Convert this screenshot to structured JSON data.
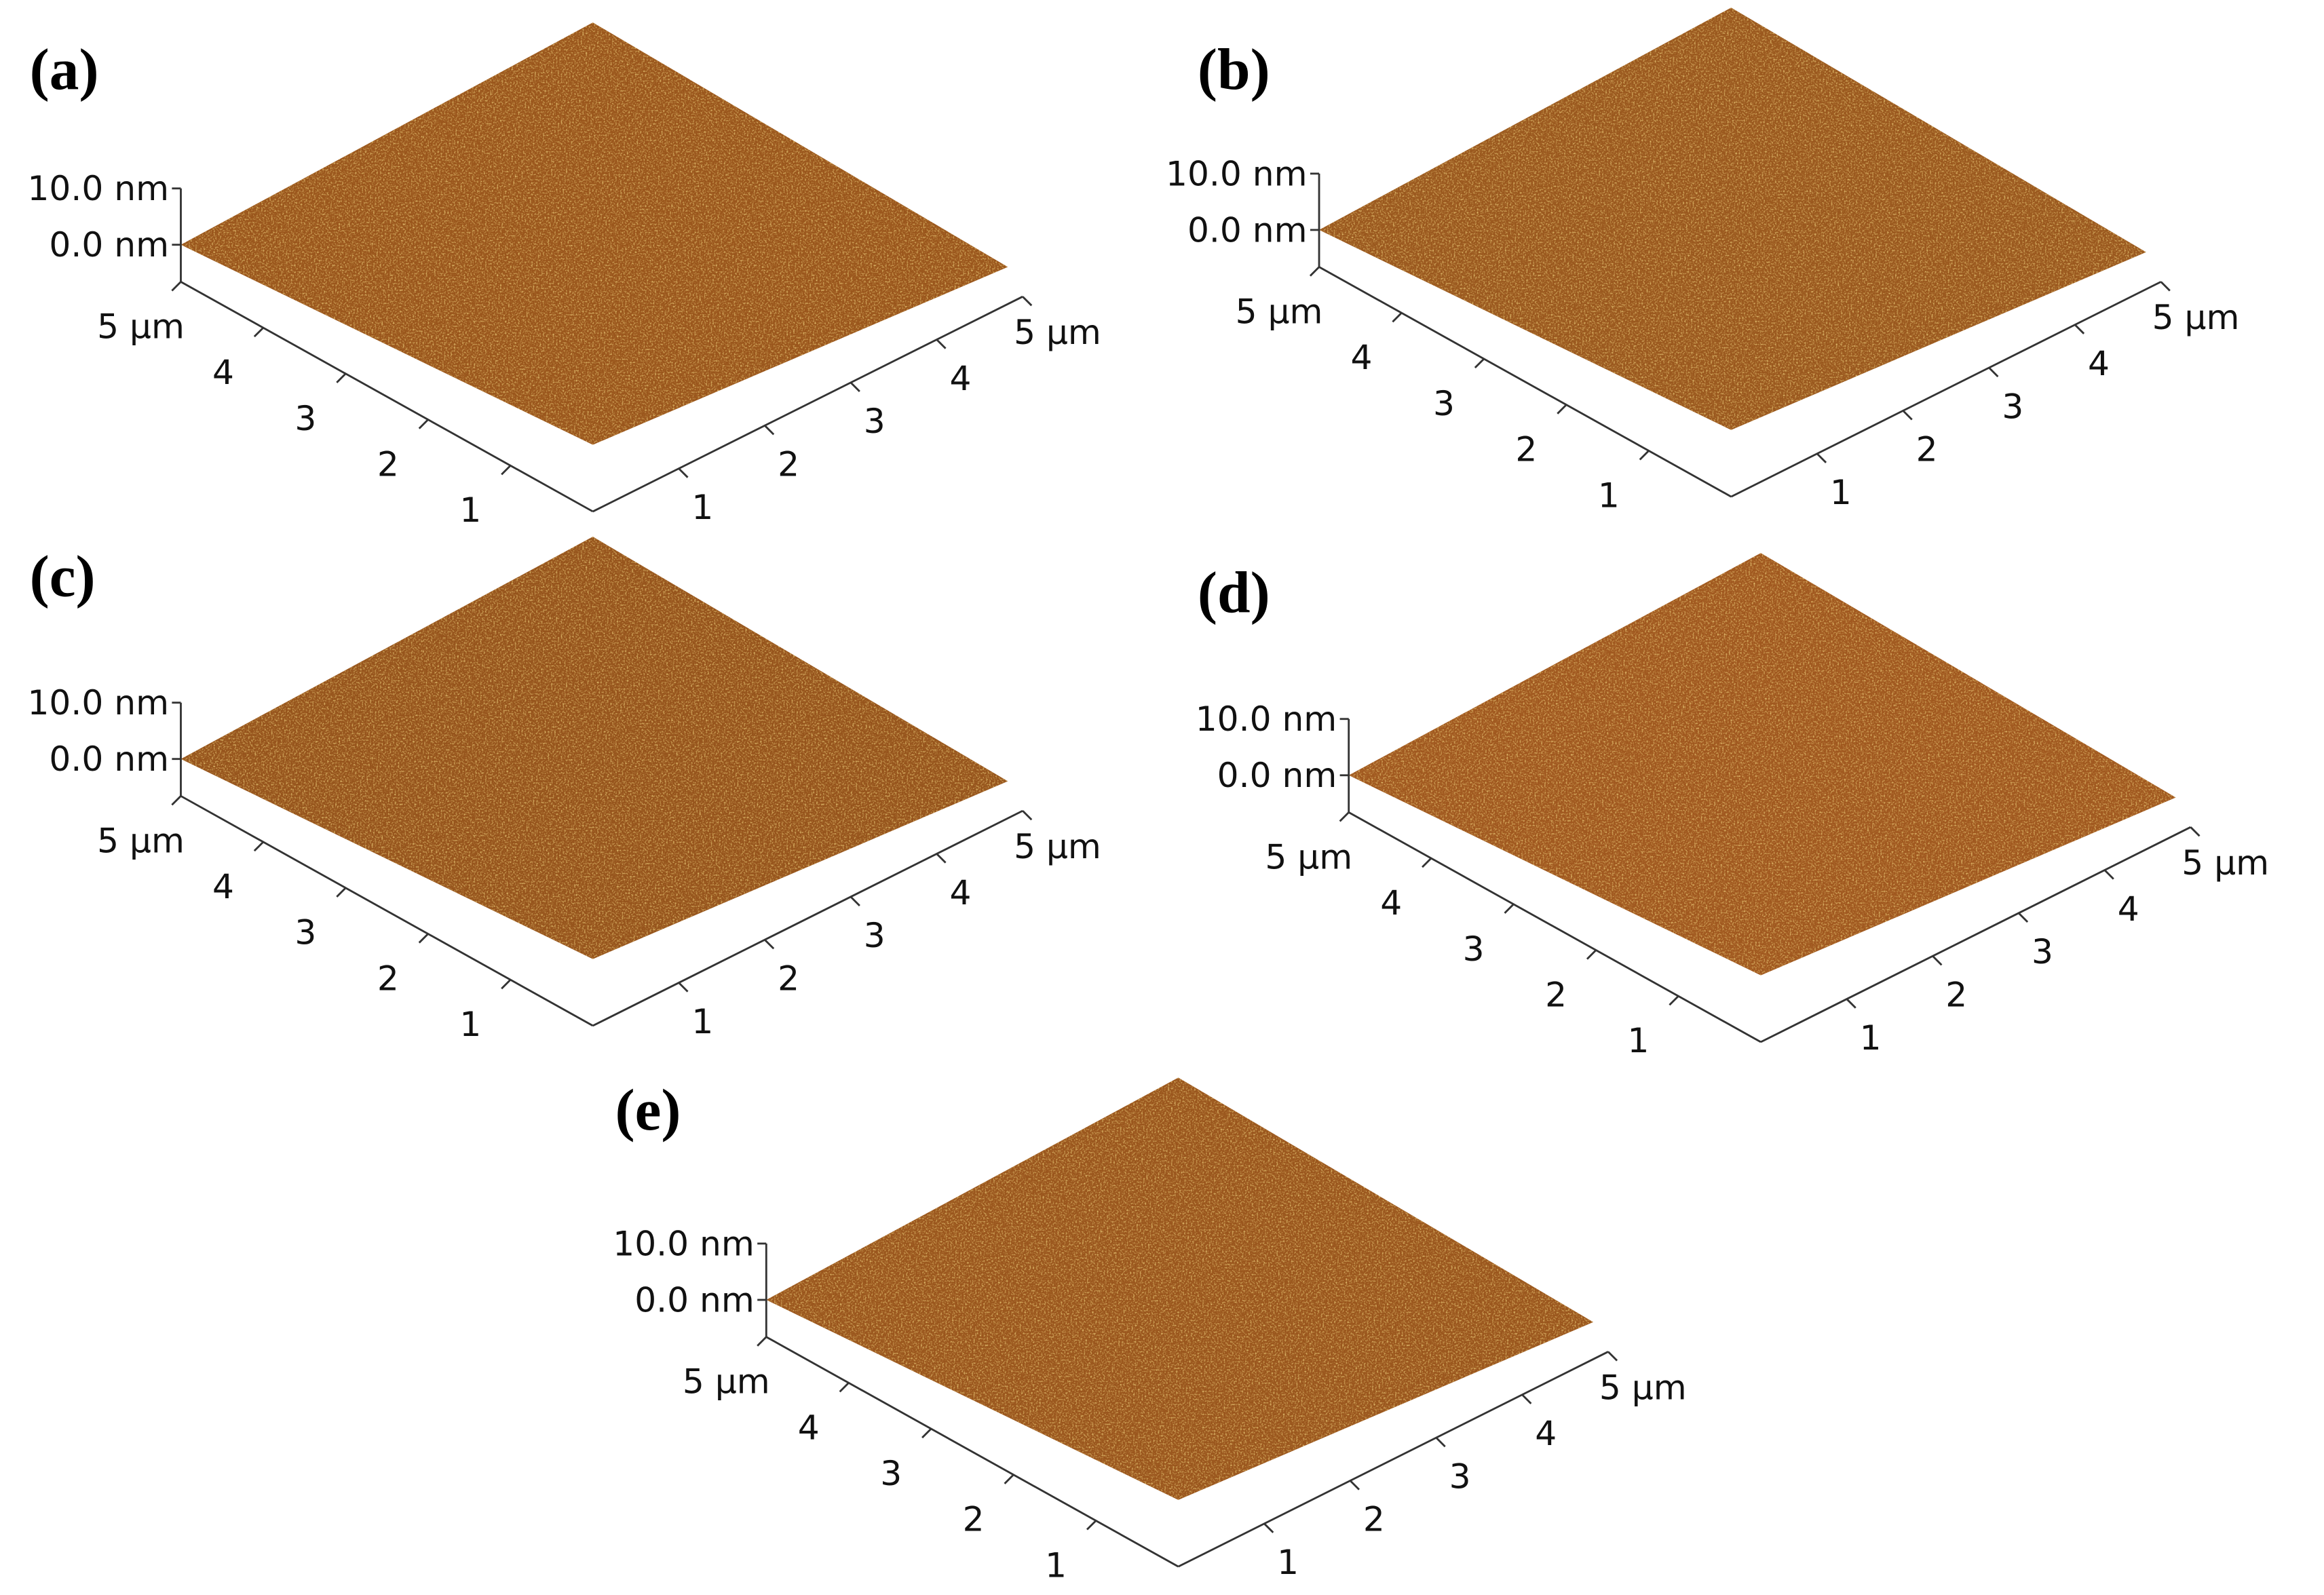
{
  "panels": [
    {
      "label": "(a)",
      "z_ticks": [
        "10.0 nm",
        "0.0 nm"
      ],
      "left_axis": [
        "5 μm",
        "4",
        "3",
        "2",
        "1"
      ],
      "right_axis": [
        "1",
        "2",
        "3",
        "4",
        "5 μm"
      ]
    },
    {
      "label": "(b)",
      "z_ticks": [
        "10.0 nm",
        "0.0 nm"
      ],
      "left_axis": [
        "5 μm",
        "4",
        "3",
        "2",
        "1"
      ],
      "right_axis": [
        "1",
        "2",
        "3",
        "4",
        "5 μm"
      ]
    },
    {
      "label": "(c)",
      "z_ticks": [
        "10.0 nm",
        "0.0 nm"
      ],
      "left_axis": [
        "5 μm",
        "4",
        "3",
        "2",
        "1"
      ],
      "right_axis": [
        "1",
        "2",
        "3",
        "4",
        "5 μm"
      ]
    },
    {
      "label": "(d)",
      "z_ticks": [
        "10.0 nm",
        "0.0 nm"
      ],
      "left_axis": [
        "5 μm",
        "4",
        "3",
        "2",
        "1"
      ],
      "right_axis": [
        "1",
        "2",
        "3",
        "4",
        "5 μm"
      ]
    },
    {
      "label": "(e)",
      "z_ticks": [
        "10.0 nm",
        "0.0 nm"
      ],
      "left_axis": [
        "5 μm",
        "4",
        "3",
        "2",
        "1"
      ],
      "right_axis": [
        "1",
        "2",
        "3",
        "4",
        "5 μm"
      ]
    }
  ]
}
